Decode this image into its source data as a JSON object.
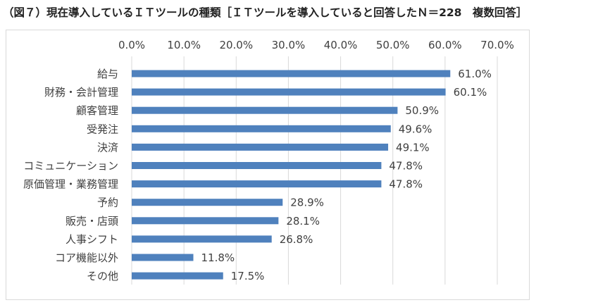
{
  "title": "（図７）現在導入しているＩＴツールの種類［ＩＴツールを導入していると回答したＮ＝228　複数回答］",
  "colors": {
    "bar": "#4f81bd",
    "grid": "#d9d9d9",
    "text": "#404040"
  },
  "chart_data": {
    "type": "bar",
    "orientation": "horizontal",
    "categories": [
      "給与",
      "財務・会計管理",
      "顧客管理",
      "受発注",
      "決済",
      "コミュニケーション",
      "原価管理・業務管理",
      "予約",
      "販売・店頭",
      "人事シフト",
      "コア機能以外",
      "その他"
    ],
    "values": [
      61.0,
      60.1,
      50.9,
      49.6,
      49.1,
      47.8,
      47.8,
      28.9,
      28.1,
      26.8,
      11.8,
      17.5
    ],
    "value_labels": [
      "61.0%",
      "60.1%",
      "50.9%",
      "49.6%",
      "49.1%",
      "47.8%",
      "47.8%",
      "28.9%",
      "28.1%",
      "26.8%",
      "11.8%",
      "17.5%"
    ],
    "xlim": [
      0,
      70
    ],
    "xticks": [
      0,
      10,
      20,
      30,
      40,
      50,
      60,
      70
    ],
    "xtick_labels": [
      "0.0%",
      "10.0%",
      "20.0%",
      "30.0%",
      "40.0%",
      "50.0%",
      "60.0%",
      "70.0%"
    ],
    "axis_position": "top",
    "grid": true,
    "legend": false
  }
}
